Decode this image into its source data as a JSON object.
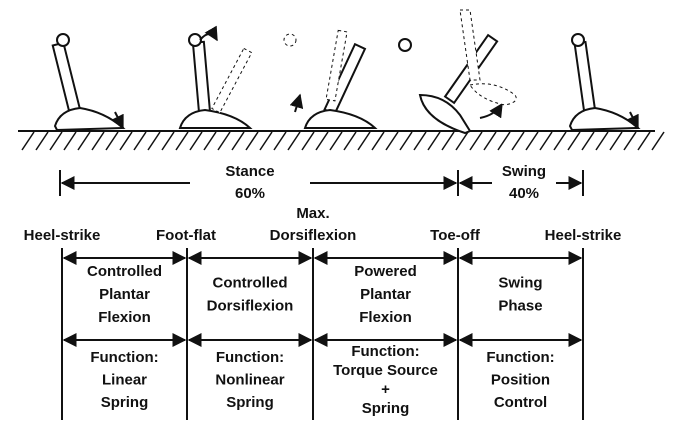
{
  "stance": {
    "label": "Stance",
    "percent": "60%"
  },
  "swing": {
    "label": "Swing",
    "percent": "40%"
  },
  "events": [
    [
      "Heel-strike"
    ],
    [
      "Foot-flat"
    ],
    [
      "Max.",
      "Dorsiflexion"
    ],
    [
      "Toe-off"
    ],
    [
      "Heel-strike"
    ]
  ],
  "phases": [
    {
      "name": [
        "Controlled",
        "Plantar",
        "Flexion"
      ],
      "function": [
        "Function:",
        "Linear",
        "Spring"
      ]
    },
    {
      "name": [
        "Controlled",
        "Dorsiflexion"
      ],
      "function": [
        "Function:",
        "Nonlinear",
        "Spring"
      ]
    },
    {
      "name": [
        "Powered",
        "Plantar",
        "Flexion"
      ],
      "function": [
        "Function:",
        "Torque Source",
        "+",
        "Spring"
      ]
    },
    {
      "name": [
        "Swing",
        "Phase"
      ],
      "function": [
        "Function:",
        "Position",
        "Control"
      ]
    }
  ]
}
